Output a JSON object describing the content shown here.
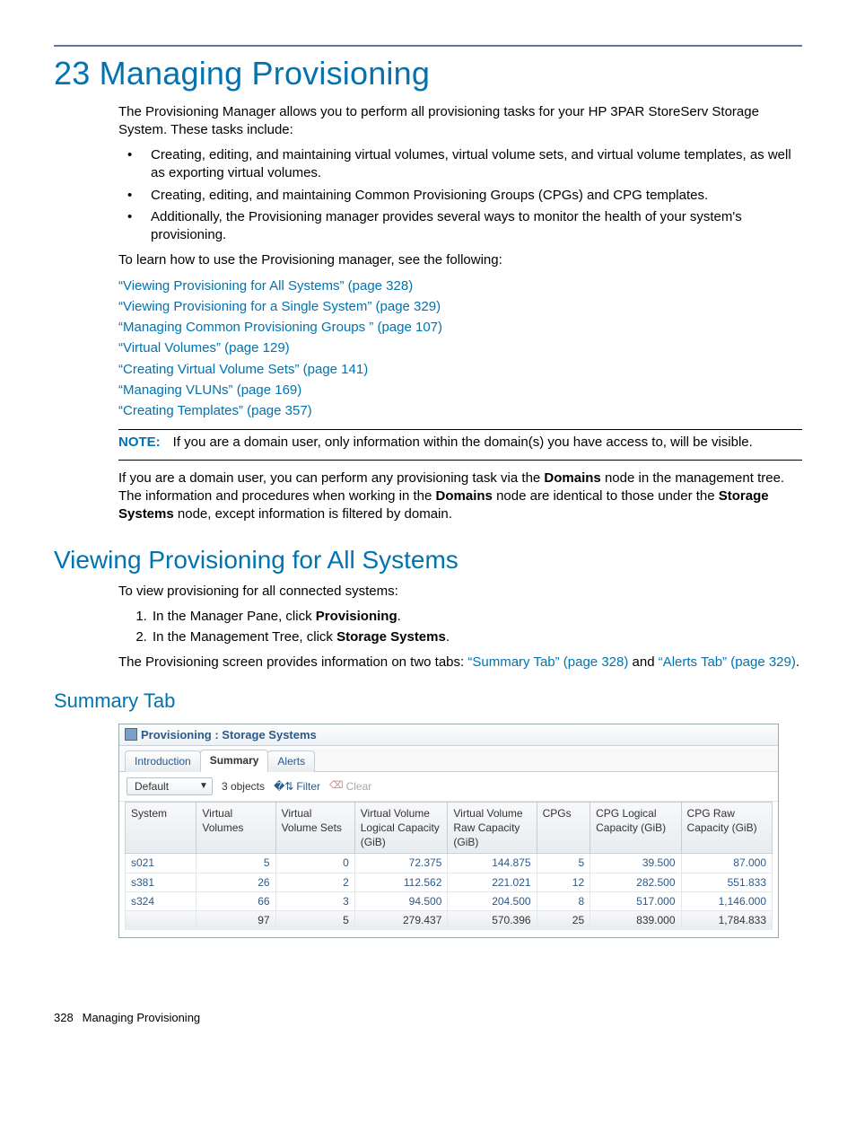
{
  "chapter_title": "23 Managing Provisioning",
  "intro": "The Provisioning Manager allows you to perform all provisioning tasks for your HP 3PAR StoreServ Storage System. These tasks include:",
  "bullets": [
    "Creating, editing, and maintaining virtual volumes, virtual volume sets, and virtual volume templates, as well as exporting virtual volumes.",
    "Creating, editing, and maintaining Common Provisioning Groups (CPGs) and CPG templates.",
    "Additionally, the Provisioning manager provides several ways to monitor the health of your system's provisioning."
  ],
  "learn_text": "To learn how to use the Provisioning manager, see the following:",
  "links": [
    "“Viewing Provisioning for All Systems” (page 328)",
    "“Viewing Provisioning for a Single System” (page 329)",
    "“Managing Common Provisioning Groups ” (page 107)",
    "“Virtual Volumes” (page 129)",
    "“Creating Virtual Volume Sets” (page 141)",
    "“Managing VLUNs” (page 169)",
    "“Creating Templates” (page 357)"
  ],
  "note_label": "NOTE:",
  "note_text": "If you are a domain user, only information within the domain(s) you have access to, will be visible.",
  "domain_para_1": "If you are a domain user, you can perform any provisioning task via the ",
  "domain_bold_1": "Domains",
  "domain_para_2": " node in the management tree. The information and procedures when working in the ",
  "domain_bold_2": "Domains",
  "domain_para_3": " node are identical to those under the ",
  "domain_bold_3": "Storage Systems",
  "domain_para_4": " node, except information is filtered by domain.",
  "section_title": "Viewing Provisioning for All Systems",
  "section_intro": "To view provisioning for all connected systems:",
  "step1_a": "In the Manager Pane, click ",
  "step1_b": "Provisioning",
  "step1_c": ".",
  "step2_a": "In the Management Tree, click ",
  "step2_b": "Storage Systems",
  "step2_c": ".",
  "tabs_para_a": "The Provisioning screen provides information on two tabs: ",
  "tabs_link_1": "“Summary Tab” (page 328)",
  "tabs_para_b": " and ",
  "tabs_link_2": "“Alerts Tab” (page 329)",
  "tabs_para_c": ".",
  "sub_title": "Summary Tab",
  "app": {
    "title": "Provisioning : Storage Systems",
    "tabs": [
      "Introduction",
      "Summary",
      "Alerts"
    ],
    "active_tab": 1,
    "view_select": "Default",
    "object_count": "3 objects",
    "filter_label": "Filter",
    "clear_label": "Clear",
    "columns": [
      "System",
      "Virtual Volumes",
      "Virtual Volume Sets",
      "Virtual Volume Logical Capacity (GiB)",
      "Virtual Volume Raw Capacity (GiB)",
      "CPGs",
      "CPG Logical Capacity (GiB)",
      "CPG Raw Capacity (GiB)"
    ],
    "col_widths": [
      "72px",
      "80px",
      "80px",
      "94px",
      "90px",
      "54px",
      "92px",
      "92px"
    ],
    "rows": [
      [
        "s021",
        "5",
        "0",
        "72.375",
        "144.875",
        "5",
        "39.500",
        "87.000"
      ],
      [
        "s381",
        "26",
        "2",
        "112.562",
        "221.021",
        "12",
        "282.500",
        "551.833"
      ],
      [
        "s324",
        "66",
        "3",
        "94.500",
        "204.500",
        "8",
        "517.000",
        "1,146.000"
      ]
    ],
    "totals": [
      "",
      "97",
      "5",
      "279.437",
      "570.396",
      "25",
      "839.000",
      "1,784.833"
    ]
  },
  "footer_page": "328",
  "footer_text": "Managing Provisioning"
}
